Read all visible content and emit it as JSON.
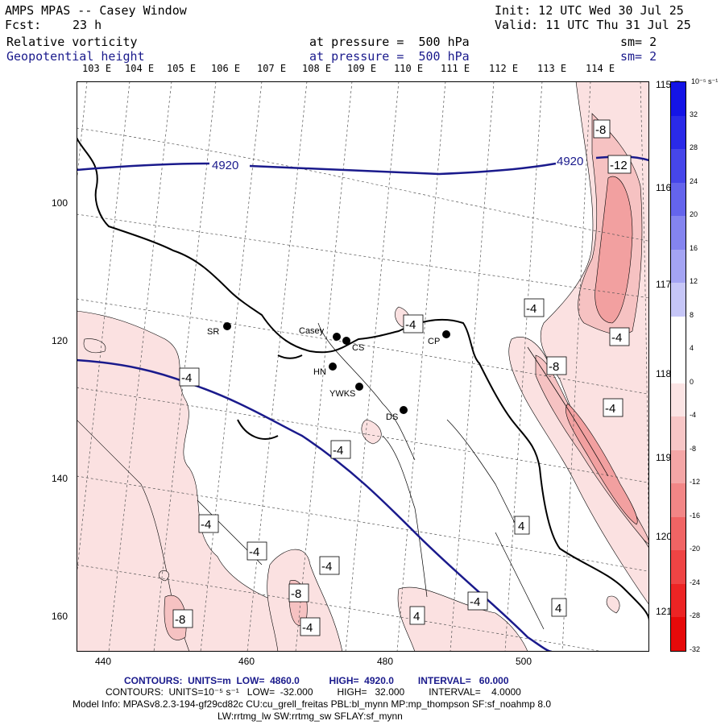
{
  "header": {
    "title": "AMPS MPAS -- Casey Window",
    "init": "Init: 12 UTC Wed 30 Jul 25",
    "fcst_label": "Fcst:",
    "fcst_value": "23 h",
    "valid": "Valid: 11 UTC Thu 31 Jul 25",
    "field1": "Relative vorticity",
    "field1_pressure": "at pressure =  500 hPa",
    "field1_sm": "sm= 2",
    "field2": "Geopotential height",
    "field2_pressure": "at pressure =  500 hPa",
    "field2_sm": "sm= 2"
  },
  "longitude_labels": [
    "103 E",
    "104 E",
    "105 E",
    "106 E",
    "107 E",
    "108 E",
    "109 E",
    "110 E",
    "111 E",
    "112 E",
    "113 E",
    "114 E"
  ],
  "right_lon_labels": [
    "115 E",
    "116 E",
    "117 E",
    "118 E",
    "119 E",
    "120 E",
    "121 E"
  ],
  "y_ticks": [
    "100",
    "120",
    "140",
    "160"
  ],
  "x_ticks": [
    "440",
    "460",
    "480",
    "500"
  ],
  "colorbar": {
    "unit": "10⁻⁵ s⁻¹",
    "labels": [
      "32",
      "28",
      "24",
      "20",
      "16",
      "12",
      "8",
      "4",
      "0",
      "-4",
      "-8",
      "-12",
      "-16",
      "-20",
      "-24",
      "-28",
      "-32"
    ],
    "colors": [
      "#1414e6",
      "#2a2ae8",
      "#4646ea",
      "#6464ec",
      "#8484ef",
      "#a4a4f3",
      "#c6c6f7",
      "#ffffff",
      "#ffffff",
      "#fbe4e4",
      "#f7c6c6",
      "#f4a6a6",
      "#f28686",
      "#f06464",
      "#ee4444",
      "#ec2424",
      "#e60a0a"
    ]
  },
  "stations": [
    {
      "name": "SR"
    },
    {
      "name": "Casey"
    },
    {
      "name": "CS"
    },
    {
      "name": "HN"
    },
    {
      "name": "YWKS"
    },
    {
      "name": "DS"
    },
    {
      "name": "CP"
    }
  ],
  "height_contours": [
    "4920",
    "4920"
  ],
  "vort_labels": [
    "-8",
    "-12",
    "-4",
    "-4",
    "-8",
    "-4",
    "-4",
    "-4",
    "-4",
    "-4",
    "-4",
    "-8",
    "-8",
    "-4",
    "-4",
    "4",
    "4",
    "4",
    "-4"
  ],
  "footer": {
    "line1": "CONTOURS:  UNITS=m  LOW=  4860.0           HIGH=  4920.0         INTERVAL=   60.000",
    "line2": "CONTOURS:  UNITS=10⁻⁵ s⁻¹   LOW=  -32.000         HIGH=   32.000         INTERVAL=    4.0000",
    "line3": "Model Info: MPASv8.2.3-194-gf29cd82c CU:cu_grell_freitas PBL:bl_mynn MP:mp_thompson SF:sf_noahmp 8.0",
    "line4": "LW:rrtmg_lw SW:rrtmg_sw SFLAY:sf_mynn"
  }
}
